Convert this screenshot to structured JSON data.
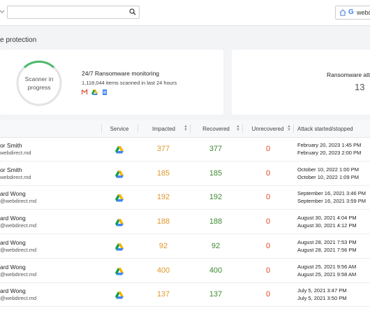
{
  "header": {
    "account": "webd"
  },
  "page_title": "e protection",
  "scanner": {
    "status": "Scanner in progress",
    "title": "24/7 Ransomware monitoring",
    "subtitle": "1,118,044 items scanned in last 24 hours"
  },
  "attacks_card": {
    "title": "Ransomware atta",
    "count": 13
  },
  "table": {
    "columns": [
      "Service",
      "Impacted",
      "Recovered",
      "Unrecovered",
      "Attack started/stopped"
    ],
    "rows": [
      {
        "name": "or Smith",
        "email": "webdirect.md",
        "impacted": 377,
        "recovered": 377,
        "unrecovered": 0,
        "started": "February 20, 2023 1:45 PM",
        "stopped": "February 20, 2023 2:00 PM"
      },
      {
        "name": "or Smith",
        "email": "webdirect.md",
        "impacted": 185,
        "recovered": 185,
        "unrecovered": 0,
        "started": "October 10, 2022 1:00 PM",
        "stopped": "October 10, 2022 1:09 PM"
      },
      {
        "name": "ard Wong",
        "email": "@webdirect.md",
        "impacted": 192,
        "recovered": 192,
        "unrecovered": 0,
        "started": "September 16, 2021 3:46 PM",
        "stopped": "September 16, 2021 3:59 PM"
      },
      {
        "name": "ard Wong",
        "email": "@webdirect.md",
        "impacted": 188,
        "recovered": 188,
        "unrecovered": 0,
        "started": "August 30, 2021 4:04 PM",
        "stopped": "August 30, 2021 4:12 PM"
      },
      {
        "name": "ard Wong",
        "email": "@webdirect.md",
        "impacted": 92,
        "recovered": 92,
        "unrecovered": 0,
        "started": "August 28, 2021 7:53 PM",
        "stopped": "August 28, 2021 7:56 PM"
      },
      {
        "name": "ard Wong",
        "email": "@webdirect.md",
        "impacted": 400,
        "recovered": 400,
        "unrecovered": 0,
        "started": "August 25, 2021 9:56 AM",
        "stopped": "August 25, 2021 9:58 AM"
      },
      {
        "name": "ard Wong",
        "email": "@webdirect.md",
        "impacted": 137,
        "recovered": 137,
        "unrecovered": 0,
        "started": "July 5, 2021 3:47 PM",
        "stopped": "July 5, 2021 3:50 PM"
      }
    ]
  }
}
